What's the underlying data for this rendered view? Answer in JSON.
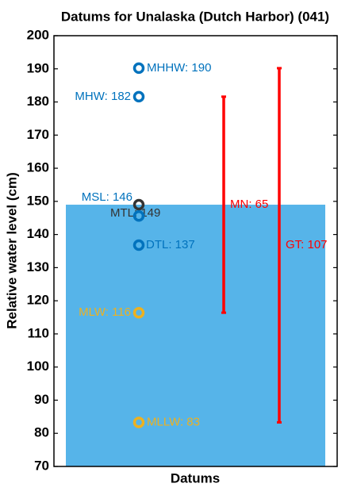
{
  "chart_data": {
    "type": "datum",
    "title": "Datums for Unalaska (Dutch Harbor) (041)",
    "x_label": "Datums",
    "y_label": "Relative water level (cm)",
    "ylim": [
      70,
      200
    ],
    "yticks": [
      70,
      80,
      90,
      100,
      110,
      120,
      130,
      140,
      150,
      160,
      170,
      180,
      190,
      200
    ],
    "fill_top": 149,
    "fill_color": "#56b4e9",
    "datums": [
      {
        "value": 190.2,
        "label": "MHHW: 190",
        "color": "#0072bd"
      },
      {
        "value": 181.6,
        "label": "MHW: 182",
        "color": "#0072bd"
      },
      {
        "value": 149,
        "label": "MTL: 149",
        "color": "#333333"
      },
      {
        "value": 145.6,
        "label": "MSL: 146",
        "color": "#0072bd"
      },
      {
        "value": 136.8,
        "label": "DTL: 137",
        "color": "#0072bd"
      },
      {
        "value": 116.4,
        "label": "MLW: 116",
        "color": "#edb120"
      },
      {
        "value": 83.3,
        "label": "MLLW: 83",
        "color": "#edb120"
      }
    ],
    "ranges": [
      {
        "value": 65.2,
        "label": "MN: 65",
        "low": 116.4,
        "high": 181.6,
        "color": "#ff0000"
      },
      {
        "value": 106.9,
        "label": "GT: 107",
        "low": 83.3,
        "high": 190.2,
        "color": "#ff0000"
      }
    ]
  }
}
